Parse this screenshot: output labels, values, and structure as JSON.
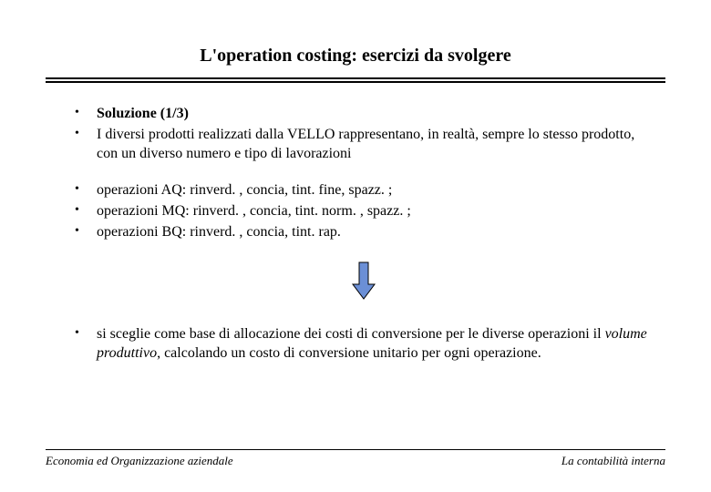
{
  "title": "L'operation costing: esercizi da svolgere",
  "group1": {
    "items": [
      {
        "html": "<span class=\"bold\">Soluzione (1/3)</span>"
      },
      {
        "html": "I diversi prodotti realizzati dalla VELLO rappresentano, in realtà, sempre lo stesso prodotto, con un diverso numero e tipo di lavorazioni"
      }
    ]
  },
  "group2": {
    "items": [
      {
        "html": "operazioni AQ: rinverd. , concia, tint. fine, spazz. ;"
      },
      {
        "html": "operazioni MQ: rinverd. , concia, tint. norm. , spazz. ;"
      },
      {
        "html": "operazioni BQ: rinverd. , concia, tint. rap."
      }
    ]
  },
  "group3": {
    "items": [
      {
        "html": "si sceglie come base di allocazione dei costi di conversione per le diverse operazioni il <span class=\"italic\">volume produttivo</span>, calcolando un costo di conversione unitario per ogni operazione."
      }
    ]
  },
  "arrow": {
    "fill": "#6b8fd6",
    "stroke": "#000000",
    "width": 26,
    "height": 44
  },
  "footer": {
    "left": "Economia ed Organizzazione aziendale",
    "right": "La contabilità interna"
  },
  "colors": {
    "background": "#ffffff",
    "text": "#000000"
  },
  "typography": {
    "title_fontsize": 20,
    "body_fontsize": 16,
    "footer_fontsize": 13,
    "font_family": "Times New Roman"
  }
}
